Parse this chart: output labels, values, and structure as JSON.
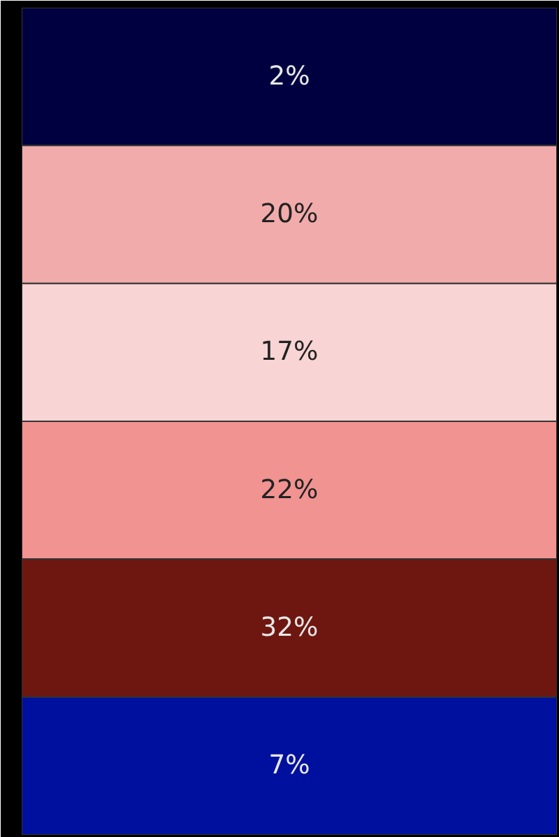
{
  "chart_data": {
    "type": "heatmap",
    "categories": [
      null
    ],
    "y_categories": [
      null,
      null,
      null,
      null,
      null,
      null
    ],
    "cells": [
      [
        2
      ],
      [
        20
      ],
      [
        17
      ],
      [
        22
      ],
      [
        32
      ],
      [
        7
      ]
    ],
    "cell_labels": [
      [
        "2%"
      ],
      [
        "20%"
      ],
      [
        "17%"
      ],
      [
        "22%"
      ],
      [
        "32%"
      ],
      [
        "7%"
      ]
    ],
    "colors": [
      "#000041",
      "#0013b0",
      "#fffdfd",
      "#f2abab",
      "#ec635d",
      "#6e1710"
    ]
  }
}
